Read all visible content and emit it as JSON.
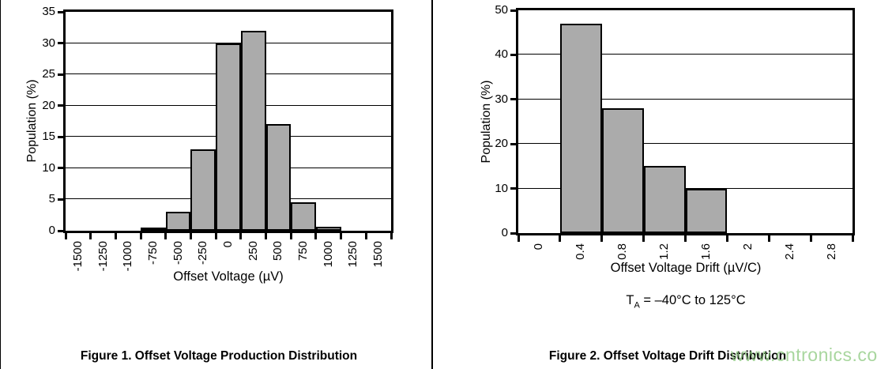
{
  "figures": [
    {
      "caption": "Figure 1. Offset Voltage Production Distribution"
    },
    {
      "caption": "Figure 2. Offset Voltage Drift Distribution",
      "note": {
        "pre": "T",
        "sub": "A",
        "post": " = –40°C to 125°C"
      }
    }
  ],
  "chart_data": [
    {
      "type": "bar",
      "title": "",
      "xlabel": "Offset Voltage (µV)",
      "ylabel": "Population (%)",
      "categories": [
        "-1500",
        "-1250",
        "-1000",
        "-750",
        "-500",
        "-250",
        "0",
        "250",
        "500",
        "750",
        "1000",
        "1250",
        "1500"
      ],
      "values": [
        0,
        0,
        0,
        0.3,
        3,
        13,
        30,
        32,
        17,
        4.5,
        0.6,
        0,
        0
      ],
      "ylim": [
        0,
        35
      ],
      "ytick_step": 5,
      "grid": true,
      "legend": "none",
      "bar_color": "#ababab",
      "bar_border_color": "#000000"
    },
    {
      "type": "bar",
      "title": "",
      "xlabel": "Offset Voltage Drift (µV/C)",
      "ylabel": "Population (%)",
      "categories": [
        "0",
        "0.4",
        "0.8",
        "1.2",
        "1.6",
        "2",
        "2.4",
        "2.8"
      ],
      "values": [
        0,
        47,
        28,
        15,
        10,
        0,
        0,
        0
      ],
      "ylim": [
        0,
        50
      ],
      "ytick_step": 10,
      "grid": true,
      "legend": "none",
      "bar_color": "#ababab",
      "bar_border_color": "#000000"
    }
  ],
  "watermark": {
    "text": "www.cntronics.com",
    "color": "#8cc97e"
  }
}
